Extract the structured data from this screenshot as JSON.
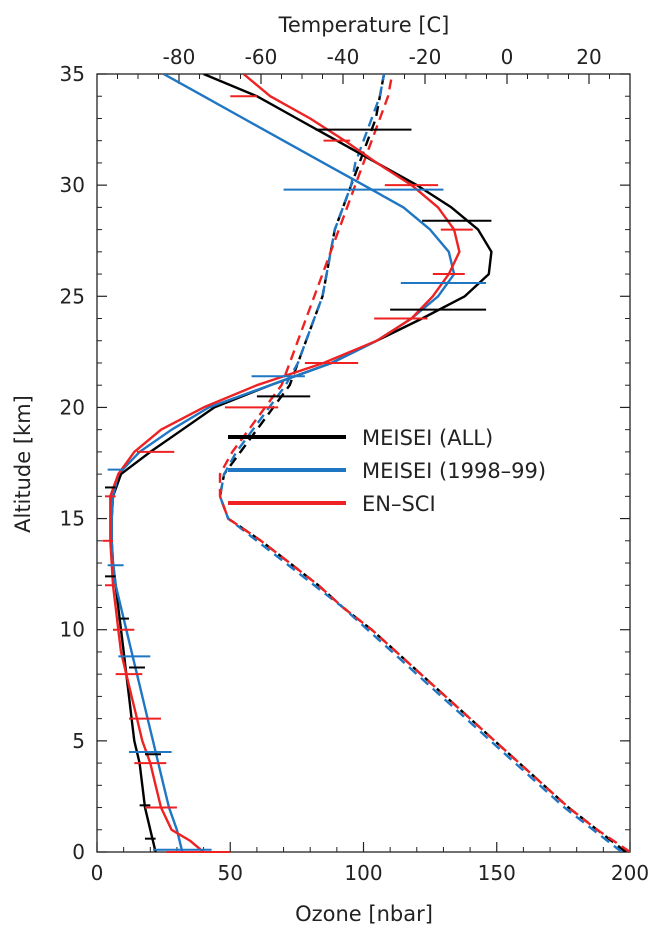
{
  "chart_data": {
    "type": "line",
    "x_bottom": {
      "label": "Ozone [nbar]",
      "range": [
        0,
        200
      ],
      "ticks": [
        0,
        50,
        100,
        150,
        200
      ]
    },
    "x_top": {
      "label": "Temperature [C]",
      "range": [
        -100,
        30
      ],
      "ticks": [
        -80,
        -60,
        -40,
        -20,
        0,
        20
      ]
    },
    "y": {
      "label": "Altitude [km]",
      "range": [
        0,
        35
      ],
      "ticks": [
        0,
        5,
        10,
        15,
        20,
        25,
        30,
        35
      ]
    },
    "legend": {
      "placement": "center-right",
      "entries": [
        {
          "label": "MEISEI (ALL)",
          "color": "#000000"
        },
        {
          "label": "MEISEI (1998–99)",
          "color": "#1f77c4"
        },
        {
          "label": "EN–SCI",
          "color": "#ee2222"
        }
      ]
    },
    "ozone_series": [
      {
        "name": "MEISEI (ALL)",
        "color": "#000000",
        "points": [
          [
            22,
            0
          ],
          [
            20,
            1
          ],
          [
            18,
            2
          ],
          [
            17,
            3
          ],
          [
            16,
            4
          ],
          [
            14,
            5
          ],
          [
            13,
            6
          ],
          [
            12,
            7
          ],
          [
            11,
            8
          ],
          [
            10,
            9
          ],
          [
            9,
            10
          ],
          [
            8,
            11
          ],
          [
            7,
            12
          ],
          [
            6,
            13
          ],
          [
            5.5,
            14
          ],
          [
            5.5,
            15
          ],
          [
            6,
            16
          ],
          [
            9,
            17
          ],
          [
            20,
            18
          ],
          [
            32,
            19
          ],
          [
            44,
            20
          ],
          [
            65,
            21
          ],
          [
            88,
            22
          ],
          [
            105,
            23
          ],
          [
            122,
            24
          ],
          [
            138,
            25
          ],
          [
            147,
            26
          ],
          [
            148,
            27
          ],
          [
            143,
            28
          ],
          [
            133,
            29
          ],
          [
            120,
            30
          ],
          [
            105,
            31
          ],
          [
            90,
            32
          ],
          [
            75,
            33
          ],
          [
            60,
            34
          ],
          [
            40,
            35
          ]
        ],
        "error_bars": [
          [
            20,
            0.6,
            0
          ],
          [
            18,
            2.1,
            0
          ],
          [
            21,
            4.4,
            0
          ],
          [
            15,
            8.3,
            0
          ],
          [
            10,
            10.5,
            0
          ],
          [
            5,
            12.4,
            0
          ],
          [
            5,
            16.4,
            0
          ],
          [
            70,
            20.5,
            0
          ],
          [
            100,
            32.5,
            0
          ],
          [
            128,
            24.4,
            0
          ],
          [
            135,
            28.4,
            0
          ]
        ]
      },
      {
        "name": "MEISEI (1998–99)",
        "color": "#1f77c4",
        "points": [
          [
            32,
            0
          ],
          [
            30,
            1
          ],
          [
            27,
            2
          ],
          [
            25,
            3
          ],
          [
            23,
            4
          ],
          [
            21,
            5
          ],
          [
            19,
            6
          ],
          [
            17,
            7
          ],
          [
            15,
            8
          ],
          [
            13,
            9
          ],
          [
            11,
            10
          ],
          [
            9,
            11
          ],
          [
            7,
            12
          ],
          [
            6,
            13
          ],
          [
            5.5,
            14
          ],
          [
            5.5,
            15
          ],
          [
            6,
            16
          ],
          [
            8,
            17
          ],
          [
            16,
            18
          ],
          [
            28,
            19
          ],
          [
            42,
            20
          ],
          [
            65,
            21
          ],
          [
            88,
            22
          ],
          [
            105,
            23
          ],
          [
            118,
            24
          ],
          [
            128,
            25
          ],
          [
            134,
            26
          ],
          [
            132,
            27
          ],
          [
            125,
            28
          ],
          [
            115,
            29
          ],
          [
            100,
            30
          ],
          [
            85,
            31
          ],
          [
            70,
            32
          ],
          [
            55,
            33
          ],
          [
            40,
            34
          ],
          [
            25,
            35
          ]
        ],
        "error_bars": [
          [
            32,
            0.1,
            0
          ],
          [
            20,
            4.5,
            0
          ],
          [
            14,
            8.8,
            0
          ],
          [
            7,
            12.9,
            0
          ],
          [
            7,
            17.2,
            0
          ],
          [
            68,
            21.4,
            0
          ],
          [
            100,
            29.8,
            0
          ],
          [
            130,
            25.6,
            0
          ]
        ]
      },
      {
        "name": "EN–SCI",
        "color": "#ee2222",
        "points": [
          [
            40,
            0
          ],
          [
            35,
            0.5
          ],
          [
            28,
            1
          ],
          [
            24,
            2
          ],
          [
            22,
            3
          ],
          [
            20,
            4
          ],
          [
            17,
            5
          ],
          [
            15,
            6
          ],
          [
            13,
            7
          ],
          [
            11,
            8
          ],
          [
            9,
            9
          ],
          [
            8,
            10
          ],
          [
            7,
            11
          ],
          [
            6,
            12
          ],
          [
            5.5,
            13
          ],
          [
            5,
            14
          ],
          [
            5,
            15
          ],
          [
            5,
            16
          ],
          [
            8,
            17
          ],
          [
            14,
            18
          ],
          [
            24,
            19
          ],
          [
            40,
            20
          ],
          [
            60,
            21
          ],
          [
            85,
            22
          ],
          [
            105,
            23
          ],
          [
            118,
            24
          ],
          [
            126,
            25
          ],
          [
            132,
            26
          ],
          [
            136,
            27
          ],
          [
            134,
            28
          ],
          [
            128,
            29
          ],
          [
            118,
            30
          ],
          [
            105,
            31
          ],
          [
            93,
            32
          ],
          [
            80,
            33
          ],
          [
            65,
            34
          ],
          [
            55,
            35
          ]
        ],
        "error_bars": [
          [
            38,
            0,
            0
          ],
          [
            24,
            2,
            0
          ],
          [
            20,
            4,
            0
          ],
          [
            18,
            6,
            0
          ],
          [
            12,
            8,
            0
          ],
          [
            10,
            10,
            0
          ],
          [
            5,
            12,
            0
          ],
          [
            4,
            14,
            0
          ],
          [
            5,
            16,
            0
          ],
          [
            22,
            18,
            0
          ],
          [
            58,
            20,
            0
          ],
          [
            88,
            22,
            0
          ],
          [
            114,
            24,
            0
          ],
          [
            132,
            26,
            0
          ],
          [
            135,
            28,
            0
          ],
          [
            118,
            30,
            0
          ],
          [
            90,
            32,
            0
          ],
          [
            55,
            34,
            0
          ]
        ]
      }
    ],
    "temperature_series": [
      {
        "name": "MEISEI (ALL)",
        "color": "#000000",
        "style": "dashed",
        "points": [
          [
            29,
            0
          ],
          [
            22,
            1
          ],
          [
            15,
            2
          ],
          [
            9,
            3
          ],
          [
            3,
            4
          ],
          [
            -3,
            5
          ],
          [
            -9,
            6
          ],
          [
            -15,
            7
          ],
          [
            -21,
            8
          ],
          [
            -27,
            9
          ],
          [
            -33,
            10
          ],
          [
            -40,
            11
          ],
          [
            -46,
            12
          ],
          [
            -53,
            13
          ],
          [
            -60,
            14
          ],
          [
            -68,
            15
          ],
          [
            -70,
            16
          ],
          [
            -69,
            17
          ],
          [
            -65,
            18
          ],
          [
            -61,
            19
          ],
          [
            -57,
            20
          ],
          [
            -53,
            21
          ],
          [
            -51,
            22
          ],
          [
            -49,
            23
          ],
          [
            -47,
            24
          ],
          [
            -45,
            25
          ],
          [
            -44,
            26
          ],
          [
            -43,
            27
          ],
          [
            -42,
            28
          ],
          [
            -40,
            29
          ],
          [
            -38,
            30
          ],
          [
            -36,
            31
          ],
          [
            -34,
            32
          ],
          [
            -32,
            33
          ],
          [
            -31,
            34
          ],
          [
            -30,
            35
          ]
        ]
      },
      {
        "name": "MEISEI (1998–99)",
        "color": "#1f77c4",
        "style": "dashed",
        "points": [
          [
            28,
            0
          ],
          [
            21,
            1
          ],
          [
            14,
            2
          ],
          [
            8,
            3
          ],
          [
            2,
            4
          ],
          [
            -4,
            5
          ],
          [
            -10,
            6
          ],
          [
            -16,
            7
          ],
          [
            -22,
            8
          ],
          [
            -28,
            9
          ],
          [
            -34,
            10
          ],
          [
            -40,
            11
          ],
          [
            -47,
            12
          ],
          [
            -54,
            13
          ],
          [
            -61,
            14
          ],
          [
            -68,
            15
          ],
          [
            -70,
            16
          ],
          [
            -69,
            17
          ],
          [
            -66,
            18
          ],
          [
            -62,
            19
          ],
          [
            -58,
            20
          ],
          [
            -54,
            21
          ],
          [
            -51,
            22
          ],
          [
            -49,
            23
          ],
          [
            -47,
            24
          ],
          [
            -45,
            25
          ],
          [
            -44,
            26
          ],
          [
            -43,
            27
          ],
          [
            -42,
            28
          ],
          [
            -40,
            29
          ],
          [
            -38,
            30
          ],
          [
            -37,
            31
          ],
          [
            -35,
            32
          ],
          [
            -33,
            33
          ],
          [
            -31,
            34
          ],
          [
            -30,
            35
          ]
        ]
      },
      {
        "name": "EN–SCI",
        "color": "#ee2222",
        "style": "dashed",
        "points": [
          [
            30,
            0
          ],
          [
            22,
            1
          ],
          [
            15,
            2
          ],
          [
            9,
            3
          ],
          [
            3,
            4
          ],
          [
            -3,
            5
          ],
          [
            -9,
            6
          ],
          [
            -15,
            7
          ],
          [
            -21,
            8
          ],
          [
            -27,
            9
          ],
          [
            -33,
            10
          ],
          [
            -40,
            11
          ],
          [
            -46,
            12
          ],
          [
            -53,
            13
          ],
          [
            -60,
            14
          ],
          [
            -68,
            15
          ],
          [
            -70,
            16
          ],
          [
            -70,
            17
          ],
          [
            -67,
            18
          ],
          [
            -63,
            19
          ],
          [
            -59,
            20
          ],
          [
            -55,
            21
          ],
          [
            -53,
            22
          ],
          [
            -51,
            23
          ],
          [
            -49,
            24
          ],
          [
            -47,
            25
          ],
          [
            -45,
            26
          ],
          [
            -43,
            27
          ],
          [
            -41,
            28
          ],
          [
            -39,
            29
          ],
          [
            -37,
            30
          ],
          [
            -35,
            31
          ],
          [
            -33,
            32
          ],
          [
            -31,
            33
          ],
          [
            -29,
            34
          ],
          [
            -28,
            35
          ]
        ]
      }
    ]
  }
}
